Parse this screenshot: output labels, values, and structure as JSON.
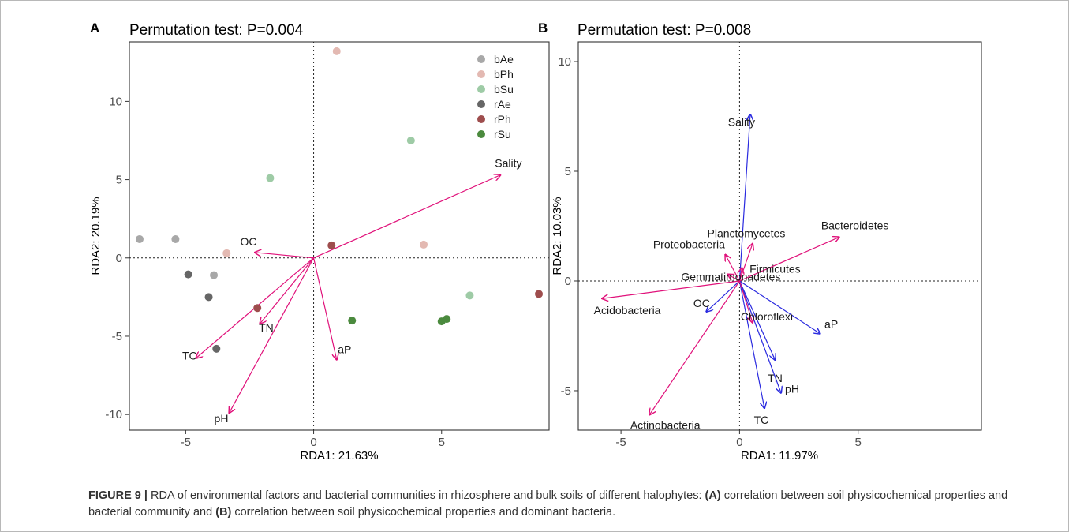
{
  "figure": {
    "caption": {
      "figure_label": "FIGURE 9 |",
      "p1": " RDA of environmental factors and bacterial communities in rhizosphere and bulk soils of different halophytes: ",
      "a": "(A)",
      "p2": " correlation between soil physicochemical properties and bacterial community and ",
      "b": "(B)",
      "p3": " correlation between soil physicochemical properties and dominant bacteria."
    }
  },
  "colors": {
    "arrow_pink": "#e0117a",
    "arrow_blue": "#2a2adf",
    "bAe": "#a8a8a8",
    "bPh": "#e3b9b2",
    "bSu": "#9ecba6",
    "rAe": "#666666",
    "rPh": "#9e4d4d",
    "rSu": "#4b8a3e"
  },
  "chart_data": [
    {
      "type": "scatter",
      "panel": "A",
      "title": "Permutation test: P=0.004",
      "xlabel": "RDA1: 21.63%",
      "ylabel": "RDA2: 20.19%",
      "xlim": [
        -7.2,
        9.2
      ],
      "ylim": [
        -11.0,
        13.8
      ],
      "xticks": [
        -5,
        0,
        5
      ],
      "yticks": [
        -10,
        -5,
        0,
        5,
        10
      ],
      "legend": {
        "position": "top-right",
        "entries": [
          "bAe",
          "bPh",
          "bSu",
          "rAe",
          "rPh",
          "rSu"
        ]
      },
      "series": [
        {
          "name": "bAe",
          "points": [
            [
              -6.8,
              1.2
            ],
            [
              -5.4,
              1.2
            ],
            [
              -3.9,
              -1.1
            ]
          ]
        },
        {
          "name": "bPh",
          "points": [
            [
              0.9,
              13.2
            ],
            [
              4.3,
              0.85
            ],
            [
              -3.4,
              0.3
            ]
          ]
        },
        {
          "name": "bSu",
          "points": [
            [
              -1.7,
              5.1
            ],
            [
              3.8,
              7.5
            ],
            [
              6.1,
              -2.4
            ]
          ]
        },
        {
          "name": "rAe",
          "points": [
            [
              -4.9,
              -1.05
            ],
            [
              -4.1,
              -2.5
            ],
            [
              -3.8,
              -5.8
            ]
          ]
        },
        {
          "name": "rPh",
          "points": [
            [
              0.7,
              0.8
            ],
            [
              -2.2,
              -3.2
            ],
            [
              8.8,
              -2.3
            ]
          ]
        },
        {
          "name": "rSu",
          "points": [
            [
              1.5,
              -4.0
            ],
            [
              5.0,
              -4.05
            ],
            [
              5.2,
              -3.9
            ]
          ]
        }
      ],
      "vectors": [
        {
          "label": "Sality",
          "x": 7.3,
          "y": 5.3
        },
        {
          "label": "OC",
          "x": -2.3,
          "y": 0.35
        },
        {
          "label": "TN",
          "x": -2.1,
          "y": -4.2
        },
        {
          "label": "TC",
          "x": -4.6,
          "y": -6.4
        },
        {
          "label": "pH",
          "x": -3.3,
          "y": -9.9
        },
        {
          "label": "aP",
          "x": 0.9,
          "y": -6.5
        }
      ]
    },
    {
      "type": "scatter",
      "panel": "B",
      "title": "Permutation test: P=0.008",
      "xlabel": "RDA1: 11.97%",
      "ylabel": "RDA2: 10.03%",
      "xlim": [
        -6.8,
        10.2
      ],
      "ylim": [
        -6.8,
        10.9
      ],
      "xticks": [
        -5,
        0,
        5
      ],
      "yticks": [
        -5,
        0,
        5,
        10
      ],
      "bacteria_vectors": [
        {
          "label": "Bacteroidetes",
          "x": 4.2,
          "y": 2.0
        },
        {
          "label": "Planctomycetes",
          "x": 0.55,
          "y": 1.7
        },
        {
          "label": "Proteobacteria",
          "x": -0.6,
          "y": 1.2
        },
        {
          "label": "Firmicutes",
          "x": 0.1,
          "y": 0.6
        },
        {
          "label": "Gemmatimonadetes",
          "x": -0.5,
          "y": 0.3
        },
        {
          "label": "Acidobacteria",
          "x": -5.8,
          "y": -0.8
        },
        {
          "label": "Chloroflexi",
          "x": 0.55,
          "y": -1.9
        },
        {
          "label": "Actinobacteria",
          "x": -3.8,
          "y": -6.1
        }
      ],
      "env_vectors": [
        {
          "label": "Sality",
          "x": 0.45,
          "y": 7.6
        },
        {
          "label": "OC",
          "x": -1.4,
          "y": -1.4
        },
        {
          "label": "aP",
          "x": 3.4,
          "y": -2.4
        },
        {
          "label": "TN",
          "x": 1.5,
          "y": -3.6
        },
        {
          "label": "pH",
          "x": 1.75,
          "y": -5.1
        },
        {
          "label": "TC",
          "x": 1.05,
          "y": -5.8
        }
      ]
    }
  ]
}
